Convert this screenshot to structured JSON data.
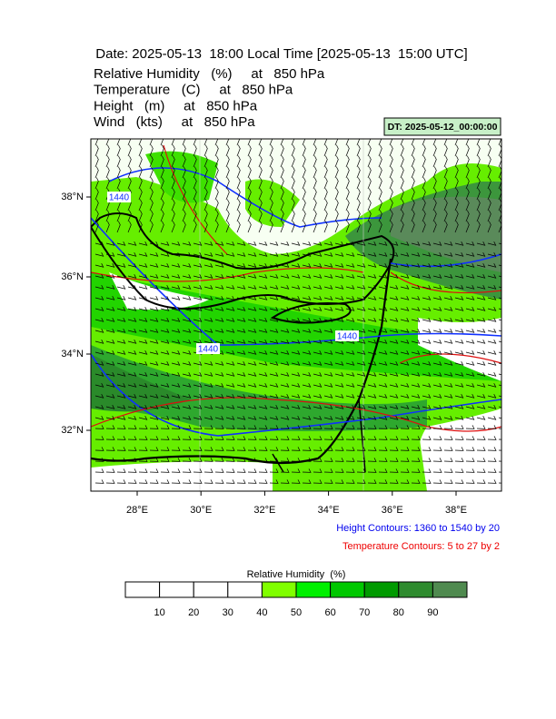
{
  "header": {
    "title": "Date: 2025-05-13  18:00 Local Time [2025-05-13  15:00 UTC]",
    "lines": [
      "Relative Humidity   (%)     at   850 hPa",
      "Temperature   (C)     at   850 hPa",
      "Height   (m)     at   850 hPa",
      "Wind   (kts)     at   850 hPa"
    ],
    "dt": "DT: 2025-05-12_00:00:00"
  },
  "map": {
    "lat_labels": [
      "38°N",
      "36°N",
      "34°N",
      "32°N"
    ],
    "lon_labels": [
      "28°E",
      "30°E",
      "32°E",
      "34°E",
      "36°E",
      "38°E"
    ],
    "contour_labels": [
      "1440",
      "1440",
      "1440"
    ]
  },
  "notes": {
    "height": "Height Contours: 1360 to 1540 by 20",
    "temperature": "Temperature Contours: 5 to 27 by 2"
  },
  "colorbar": {
    "title": "Relative Humidity  (%)",
    "ticks": [
      "10",
      "20",
      "30",
      "40",
      "50",
      "60",
      "70",
      "80",
      "90"
    ]
  }
}
